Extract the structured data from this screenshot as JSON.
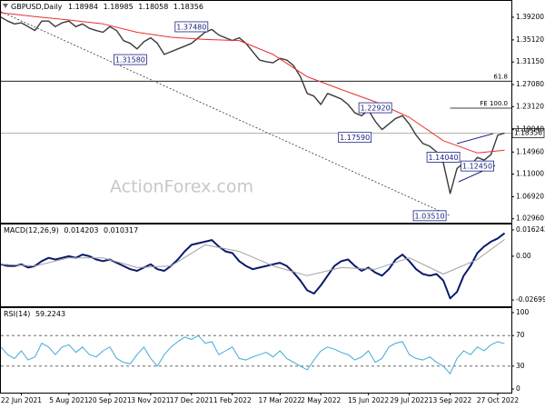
{
  "chart_data": [
    {
      "type": "line",
      "title": "GBPUSD,Daily",
      "ohlc": [
        1.18984,
        1.18985,
        1.18058,
        1.18356
      ],
      "xlim": [
        0,
        75
      ],
      "ylim": [
        1.0226,
        1.4213
      ],
      "yticks": [
        {
          "value": 1.392,
          "label": "1.39200"
        },
        {
          "value": 1.3512,
          "label": "1.35120"
        },
        {
          "value": 1.3115,
          "label": "1.31150"
        },
        {
          "value": 1.2708,
          "label": "1.27080"
        },
        {
          "value": 1.2312,
          "label": "1.23120"
        },
        {
          "value": 1.1904,
          "label": "1.19040"
        },
        {
          "value": 1.1496,
          "label": "1.14960"
        },
        {
          "value": 1.11,
          "label": "1.11000"
        },
        {
          "value": 1.0692,
          "label": "1.06920"
        },
        {
          "value": 1.0296,
          "label": "1.02960"
        }
      ],
      "series": [
        {
          "color": "#3a3a3a",
          "width": 1.4,
          "values": [
            1.392,
            1.385,
            1.38,
            1.382,
            1.375,
            1.368,
            1.385,
            1.385,
            1.375,
            1.382,
            1.385,
            1.375,
            1.38,
            1.372,
            1.368,
            1.365,
            1.375,
            1.368,
            1.35,
            1.345,
            1.335,
            1.348,
            1.355,
            1.345,
            1.325,
            1.33,
            1.335,
            1.34,
            1.345,
            1.355,
            1.365,
            1.37,
            1.36,
            1.355,
            1.35,
            1.355,
            1.345,
            1.33,
            1.315,
            1.312,
            1.31,
            1.318,
            1.315,
            1.305,
            1.285,
            1.255,
            1.25,
            1.235,
            1.255,
            1.25,
            1.245,
            1.235,
            1.22,
            1.215,
            1.225,
            1.205,
            1.19,
            1.2,
            1.21,
            1.215,
            1.2,
            1.18,
            1.165,
            1.16,
            1.15,
            1.13,
            1.075,
            1.12,
            1.13,
            1.125,
            1.14,
            1.135,
            1.145,
            1.18,
            1.18356
          ]
        },
        {
          "color": "#e8312f",
          "width": 1,
          "x": [
            0,
            5,
            10,
            15,
            20,
            25,
            30,
            35,
            40,
            45,
            50,
            55,
            60,
            65,
            70,
            74
          ],
          "values": [
            1.4,
            1.393,
            1.387,
            1.38,
            1.365,
            1.356,
            1.352,
            1.35,
            1.325,
            1.285,
            1.262,
            1.24,
            1.212,
            1.17,
            1.148,
            1.153
          ]
        }
      ],
      "levels": [
        {
          "label": "61.8",
          "value": 1.277,
          "from": 0,
          "color": "#000000"
        },
        {
          "label": "FE 100.0",
          "value": 1.2285,
          "from": 66,
          "color": "#000000"
        }
      ],
      "annotations": [
        {
          "value": 1.3748,
          "label": "1.37480",
          "x": 28
        },
        {
          "value": 1.3158,
          "label": "1.31580",
          "x": 19
        },
        {
          "value": 1.2292,
          "label": "1.22920",
          "x": 55
        },
        {
          "value": 1.1759,
          "label": "1.17590",
          "x": 52
        },
        {
          "value": 1.1404,
          "label": "1.14040",
          "x": 65
        },
        {
          "value": 1.1245,
          "label": "1.12450",
          "x": 70
        },
        {
          "value": 1.0351,
          "label": "1.03510",
          "x": 63
        }
      ],
      "trendline": {
        "x": [
          0,
          66
        ],
        "values": [
          1.402,
          1.0351
        ]
      },
      "watermark": "ActionForex.com"
    },
    {
      "type": "line",
      "title": "MACD(12,26,9)",
      "xlim": [
        0,
        75
      ],
      "ylim": [
        -0.03087,
        0.01957
      ],
      "yticks": [
        0.016242,
        {
          "value": 0,
          "label": "0.00"
        },
        -0.026994
      ],
      "series": [
        {
          "color": "#0a1a6e",
          "width": 2,
          "values": [
            -0.005,
            -0.006,
            -0.006,
            -0.005,
            -0.007,
            -0.006,
            -0.003,
            -0.001,
            -0.002,
            -0.001,
            0.0,
            -0.001,
            0.001,
            0.0,
            -0.002,
            -0.003,
            -0.002,
            -0.004,
            -0.006,
            -0.008,
            -0.009,
            -0.007,
            -0.005,
            -0.008,
            -0.009,
            -0.006,
            -0.002,
            0.003,
            0.007,
            0.008,
            0.009,
            0.01,
            0.006,
            0.003,
            0.002,
            -0.003,
            -0.006,
            -0.008,
            -0.007,
            -0.006,
            -0.005,
            -0.004,
            -0.006,
            -0.01,
            -0.015,
            -0.021,
            -0.023,
            -0.018,
            -0.012,
            -0.006,
            -0.003,
            -0.002,
            -0.006,
            -0.009,
            -0.007,
            -0.01,
            -0.012,
            -0.008,
            -0.002,
            0.001,
            -0.003,
            -0.008,
            -0.011,
            -0.012,
            -0.011,
            -0.015,
            -0.026,
            -0.022,
            -0.012,
            -0.006,
            0.002,
            0.006,
            0.009,
            0.011,
            0.014203
          ]
        },
        {
          "color": "#a0a0a0",
          "width": 1,
          "x": [
            0,
            5,
            10,
            15,
            20,
            25,
            30,
            35,
            40,
            45,
            50,
            55,
            60,
            65,
            70,
            74
          ],
          "values": [
            -0.005,
            -0.006,
            -0.001,
            -0.001,
            -0.007,
            -0.006,
            0.007,
            0.003,
            -0.006,
            -0.012,
            -0.007,
            -0.008,
            -0.001,
            -0.011,
            -0.002,
            0.010317
          ]
        }
      ]
    },
    {
      "type": "line",
      "title": "RSI(14)",
      "xlim": [
        0,
        75
      ],
      "ylim": [
        -4.7,
        105.9
      ],
      "yticks": [
        100,
        70,
        30,
        0
      ],
      "levels": [
        {
          "value": 70,
          "dashed": true,
          "color": "#555555"
        },
        {
          "value": 30,
          "dashed": true,
          "color": "#555555"
        }
      ],
      "series": [
        {
          "color": "#3fa9d6",
          "width": 1,
          "values": [
            55,
            45,
            40,
            50,
            38,
            42,
            60,
            55,
            45,
            55,
            58,
            48,
            55,
            45,
            42,
            50,
            55,
            40,
            35,
            33,
            45,
            55,
            40,
            30,
            45,
            55,
            62,
            68,
            65,
            70,
            60,
            62,
            45,
            50,
            55,
            40,
            38,
            42,
            45,
            48,
            42,
            50,
            40,
            35,
            30,
            25,
            38,
            50,
            55,
            52,
            48,
            45,
            38,
            42,
            50,
            35,
            40,
            55,
            60,
            62,
            45,
            40,
            38,
            42,
            35,
            30,
            20,
            40,
            50,
            45,
            55,
            50,
            58,
            62,
            59.2243
          ]
        }
      ],
      "xticks": [
        {
          "value": 3,
          "label": "22 Jun 2021"
        },
        {
          "value": 10,
          "label": "5 Aug 2021"
        },
        {
          "value": 16,
          "label": "20 Sep 2021"
        },
        {
          "value": 22,
          "label": "3 Nov 2021"
        },
        {
          "value": 28,
          "label": "17 Dec 2021"
        },
        {
          "value": 34,
          "label": "1 Feb 2022"
        },
        {
          "value": 41,
          "label": "17 Mar 2022"
        },
        {
          "value": 47,
          "label": "2 May 2022"
        },
        {
          "value": 54,
          "label": "15 Jun 2022"
        },
        {
          "value": 60,
          "label": "29 Jul 2022"
        },
        {
          "value": 66,
          "label": "13 Sep 2022"
        },
        {
          "value": 73,
          "label": "27 Oct 2022"
        }
      ]
    }
  ]
}
